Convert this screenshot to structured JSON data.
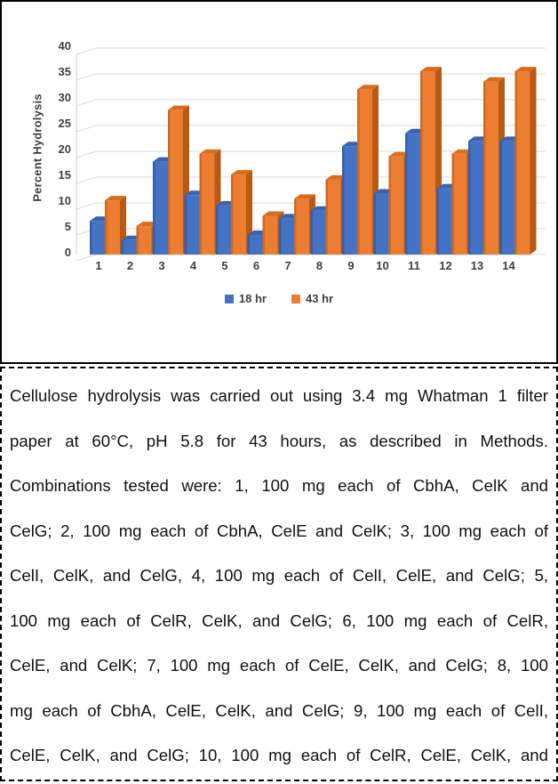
{
  "chart_data": {
    "type": "bar",
    "style": "3d-clustered-column",
    "title": "",
    "xlabel": "",
    "ylabel": "Percent Hydrolysis",
    "categories": [
      "1",
      "2",
      "3",
      "4",
      "5",
      "6",
      "7",
      "8",
      "9",
      "10",
      "11",
      "12",
      "13",
      "14"
    ],
    "series": [
      {
        "name": "18 hr",
        "color": "#4472C4",
        "side_color": "#2B4F93",
        "top_color": "#3A63AE",
        "values": [
          6.5,
          2.8,
          18,
          11.5,
          9.5,
          3.8,
          7,
          8.5,
          21,
          11.8,
          23.5,
          12.8,
          22,
          22
        ]
      },
      {
        "name": "43 hr",
        "color": "#ED7D31",
        "side_color": "#B65A14",
        "top_color": "#D96C1E",
        "values": [
          10.5,
          5.5,
          28,
          19.5,
          15.5,
          7.5,
          10.8,
          14.5,
          32,
          19,
          35.5,
          19.5,
          33.5,
          35.5
        ]
      }
    ],
    "ylim": [
      0,
      40
    ],
    "ytick_step": 5,
    "grid": true,
    "grid_color": "#D9D9D9",
    "legend_position": "bottom"
  },
  "caption": {
    "lines": [
      "Cellulose hydrolysis was carried out using 3.4 mg Whatman 1 filter",
      "paper at 60°C, pH 5.8 for 43 hours, as described in Methods.",
      "Combinations tested were:  1, 100 mg each of CbhA, CelK and",
      "CelG; 2, 100 mg each of CbhA, CelE and CelK; 3, 100 mg each of",
      "CelI, CelK, and CelG, 4, 100 mg each of CelI, CelE, and CelG; 5,",
      "100 mg each of CelR, CelK, and CelG; 6, 100 mg each of CelR,",
      "CelE, and CelK; 7, 100 mg each of CelE, CelK, and CelG; 8, 100",
      "mg each of CbhA, CelE, CelK, and CelG;  9,  100 mg each of CelI,",
      "CelE, CelK, and CelG; 10, 100 mg each of CelR, CelE, CelK, and"
    ]
  }
}
